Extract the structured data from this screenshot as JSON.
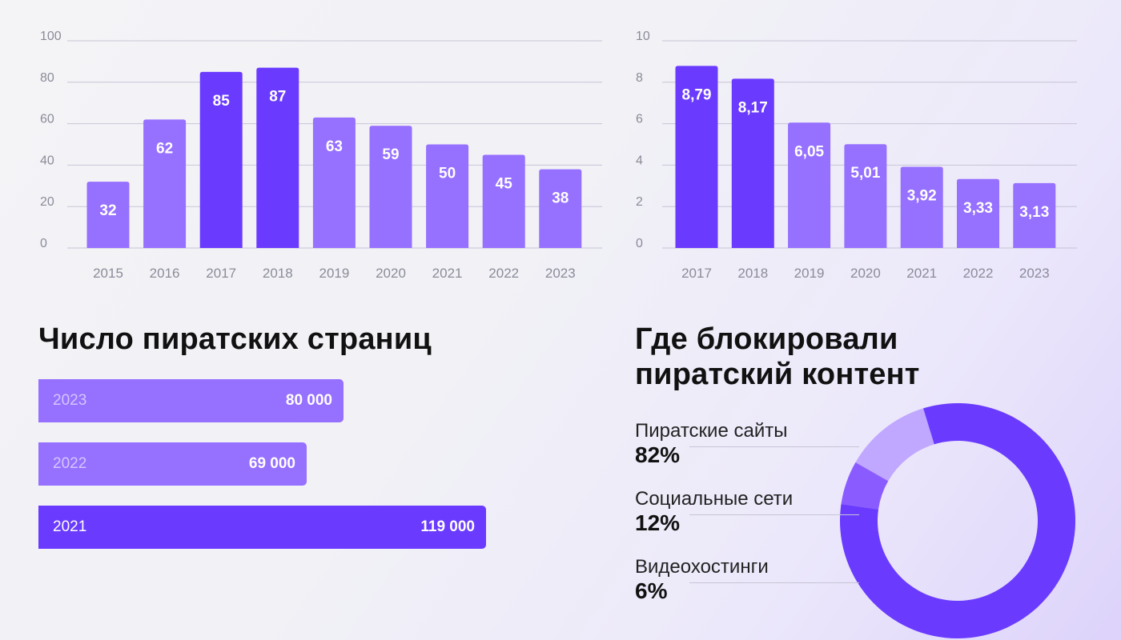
{
  "colors": {
    "accent": "#6a3bff",
    "light": "#9670ff",
    "pale": "#c0a7ff",
    "mid": "#8a5cff",
    "grid": "#c7c4d6",
    "axis_text": "#8b8b99"
  },
  "chart_data": [
    {
      "type": "bar",
      "title": "",
      "categories": [
        "2015",
        "2016",
        "2017",
        "2018",
        "2019",
        "2020",
        "2021",
        "2022",
        "2023"
      ],
      "values": [
        32,
        62,
        85,
        87,
        63,
        59,
        50,
        45,
        38
      ],
      "value_labels": [
        "32",
        "62",
        "85",
        "87",
        "63",
        "59",
        "50",
        "45",
        "38"
      ],
      "highlight": [
        false,
        false,
        true,
        true,
        false,
        false,
        false,
        false,
        false
      ],
      "ylim": [
        0,
        100
      ],
      "yticks": [
        "0",
        "20",
        "40",
        "60",
        "80",
        "100"
      ],
      "grid": true
    },
    {
      "type": "bar",
      "title": "",
      "categories": [
        "2017",
        "2018",
        "2019",
        "2020",
        "2021",
        "2022",
        "2023"
      ],
      "values": [
        8.79,
        8.17,
        6.05,
        5.01,
        3.92,
        3.33,
        3.13
      ],
      "value_labels": [
        "8,79",
        "8,17",
        "6,05",
        "5,01",
        "3,92",
        "3,33",
        "3,13"
      ],
      "highlight": [
        true,
        true,
        false,
        false,
        false,
        false,
        false
      ],
      "ylim": [
        0,
        10
      ],
      "yticks": [
        "0",
        "2",
        "4",
        "6",
        "8",
        "10"
      ],
      "grid": true
    },
    {
      "type": "bar",
      "orientation": "horizontal",
      "title": "Число пиратских страниц",
      "categories": [
        "2023",
        "2022",
        "2021"
      ],
      "values": [
        80000,
        69000,
        119000
      ],
      "value_labels": [
        "80 000",
        "69 000",
        "119 000"
      ],
      "highlight": [
        false,
        false,
        true
      ]
    },
    {
      "type": "pie",
      "donut": true,
      "title": "Где блокировали пиратский контент",
      "title_lines": [
        "Где блокировали",
        "пиратский контент"
      ],
      "labels": [
        "Пиратские сайты",
        "Социальные сети",
        "Видеохостинги"
      ],
      "values": [
        82,
        12,
        6
      ],
      "value_labels": [
        "82%",
        "12%",
        "6%"
      ]
    }
  ]
}
